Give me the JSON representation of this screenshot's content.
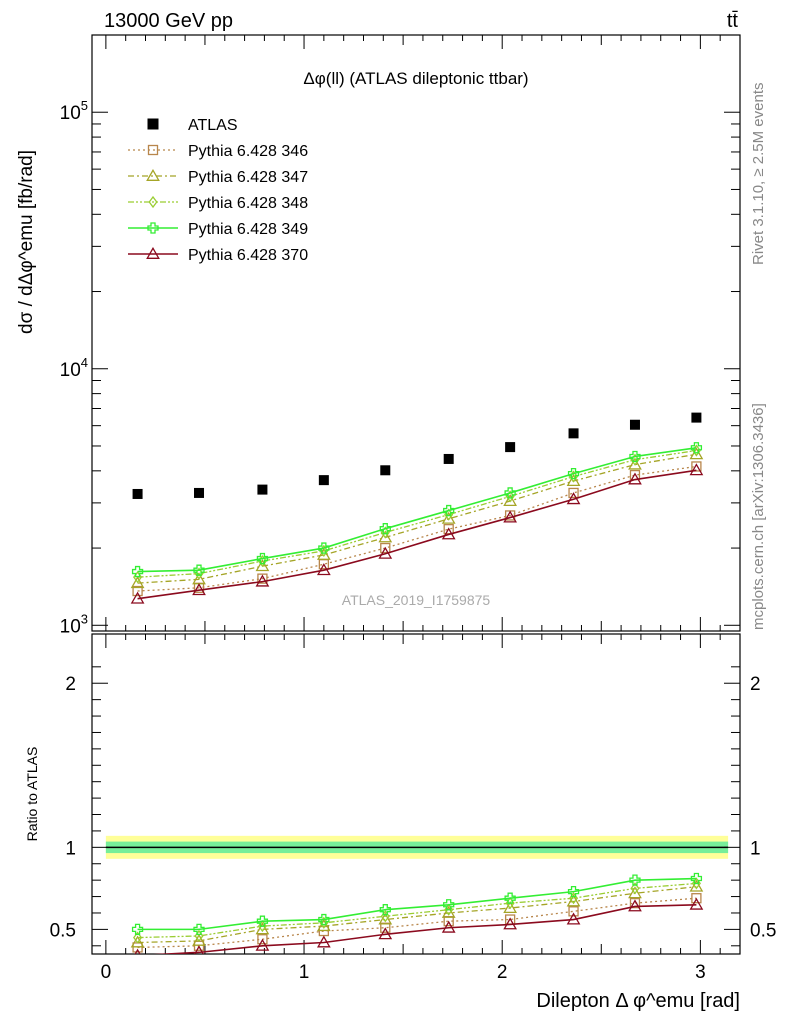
{
  "header": {
    "energy": "13000 GeV pp",
    "process": "tt̄",
    "analysis_tag": "ATLAS_2019_I1759875",
    "rivet": "Rivet 3.1.10, ≥ 2.5M events",
    "site": "mcplots.cern.ch [arXiv:1306.3436]"
  },
  "chart_data": [
    {
      "type": "scatter",
      "title": "Δφ(ll) (ATLAS dileptonic ttbar)",
      "ylabel": "dσ / dΔφ^emu [fb/rad]",
      "xlabel": "",
      "yscale": "log",
      "xlim": [
        -0.07,
        3.2
      ],
      "ylim": [
        950,
        200000
      ],
      "ytick_labels": [
        "10^3",
        "10^4",
        "10^5"
      ],
      "legend_placement": "top-left",
      "x": [
        0.16,
        0.47,
        0.79,
        1.1,
        1.41,
        1.73,
        2.04,
        2.36,
        2.67,
        2.98
      ],
      "series": [
        {
          "name": "ATLAS",
          "color": "#000000",
          "marker": "square-filled",
          "values": [
            3250,
            3280,
            3380,
            3680,
            4020,
            4450,
            4950,
            5600,
            6050,
            6450
          ]
        },
        {
          "name": "Pythia 6.428 346",
          "color": "#b8864b",
          "marker": "square-open",
          "dash": "dotted",
          "values": [
            1360,
            1400,
            1520,
            1730,
            2000,
            2370,
            2680,
            3280,
            3850,
            4160
          ]
        },
        {
          "name": "Pythia 6.428 347",
          "color": "#a5a527",
          "marker": "triangle-open",
          "dash": "dashdot",
          "values": [
            1460,
            1510,
            1700,
            1880,
            2200,
            2600,
            3050,
            3650,
            4230,
            4640
          ]
        },
        {
          "name": "Pythia 6.428 348",
          "color": "#9acd32",
          "marker": "diamond-open",
          "dash": "dashdotdot",
          "values": [
            1540,
            1590,
            1780,
            1950,
            2300,
            2700,
            3180,
            3800,
            4420,
            4800
          ]
        },
        {
          "name": "Pythia 6.428 349",
          "color": "#33ee33",
          "marker": "cross-open",
          "dash": "solid",
          "values": [
            1620,
            1640,
            1820,
            2000,
            2380,
            2800,
            3280,
            3900,
            4550,
            4920
          ]
        },
        {
          "name": "Pythia 6.428 370",
          "color": "#8b0a1e",
          "marker": "triangle-open",
          "dash": "solid",
          "values": [
            1270,
            1370,
            1480,
            1640,
            1900,
            2260,
            2630,
            3100,
            3700,
            4020
          ]
        }
      ]
    },
    {
      "type": "line",
      "title": "",
      "ylabel": "Ratio to ATLAS",
      "xlabel": "Dilepton Δ φ^emu [rad]",
      "xlim": [
        -0.07,
        3.2
      ],
      "ylim": [
        0.35,
        2.3
      ],
      "yticks": [
        0.5,
        1,
        2
      ],
      "ytick_labels": [
        "0.5",
        "1",
        "2"
      ],
      "xticks": [
        0,
        1,
        2,
        3
      ],
      "xtick_labels": [
        "0",
        "1",
        "2",
        "3"
      ],
      "reference_line": 1,
      "bands": [
        {
          "color": "#ffff99",
          "lower": 0.93,
          "upper": 1.07
        },
        {
          "color": "#77ee99",
          "lower": 0.965,
          "upper": 1.035
        }
      ],
      "x": [
        0.16,
        0.47,
        0.79,
        1.1,
        1.41,
        1.73,
        2.04,
        2.36,
        2.67,
        2.98
      ],
      "series": [
        {
          "name": "Pythia 6.428 346",
          "color": "#b8864b",
          "marker": "square-open",
          "dash": "dotted",
          "values": [
            0.39,
            0.4,
            0.44,
            0.49,
            0.51,
            0.55,
            0.56,
            0.61,
            0.66,
            0.69
          ]
        },
        {
          "name": "Pythia 6.428 347",
          "color": "#a5a527",
          "marker": "triangle-open",
          "dash": "dashdot",
          "values": [
            0.42,
            0.43,
            0.5,
            0.52,
            0.56,
            0.6,
            0.63,
            0.67,
            0.72,
            0.76
          ]
        },
        {
          "name": "Pythia 6.428 348",
          "color": "#9acd32",
          "marker": "diamond-open",
          "dash": "dashdotdot",
          "values": [
            0.45,
            0.46,
            0.52,
            0.54,
            0.58,
            0.62,
            0.66,
            0.69,
            0.75,
            0.78
          ]
        },
        {
          "name": "Pythia 6.428 349",
          "color": "#33ee33",
          "marker": "cross-open",
          "dash": "solid",
          "values": [
            0.5,
            0.5,
            0.55,
            0.56,
            0.62,
            0.65,
            0.69,
            0.73,
            0.8,
            0.81
          ]
        },
        {
          "name": "Pythia 6.428 370",
          "color": "#8b0a1e",
          "marker": "triangle-open",
          "dash": "solid",
          "values": [
            0.34,
            0.36,
            0.4,
            0.42,
            0.47,
            0.51,
            0.53,
            0.56,
            0.64,
            0.65
          ]
        }
      ]
    }
  ]
}
